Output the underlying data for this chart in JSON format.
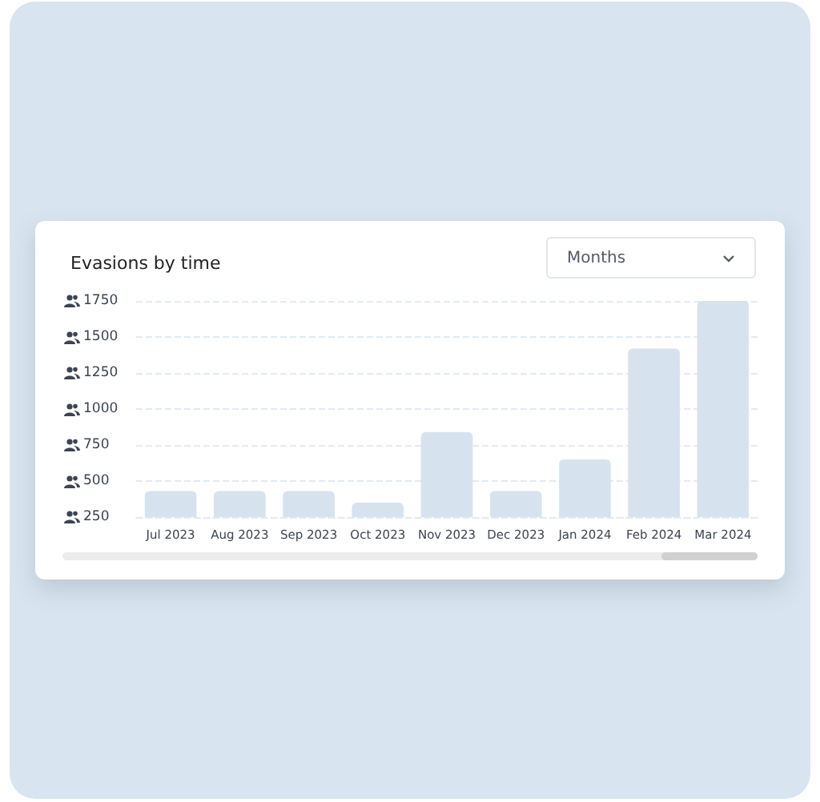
{
  "chart_data": {
    "type": "bar",
    "title": "Evasions by time",
    "annotations": [
      "Months"
    ],
    "categories": [
      "Jul 2023",
      "Aug 2023",
      "Sep 2023",
      "Oct 2023",
      "Nov 2023",
      "Dec 2023",
      "Jan 2024",
      "Feb 2024",
      "Mar 2024"
    ],
    "values": [
      430,
      430,
      430,
      350,
      840,
      430,
      650,
      1420,
      1750
    ],
    "color": "#d6e3ef",
    "ylim": [
      250,
      1750
    ],
    "yticks": [
      250,
      500,
      750,
      1000,
      1250,
      1500,
      1750
    ],
    "grid": "y"
  }
}
